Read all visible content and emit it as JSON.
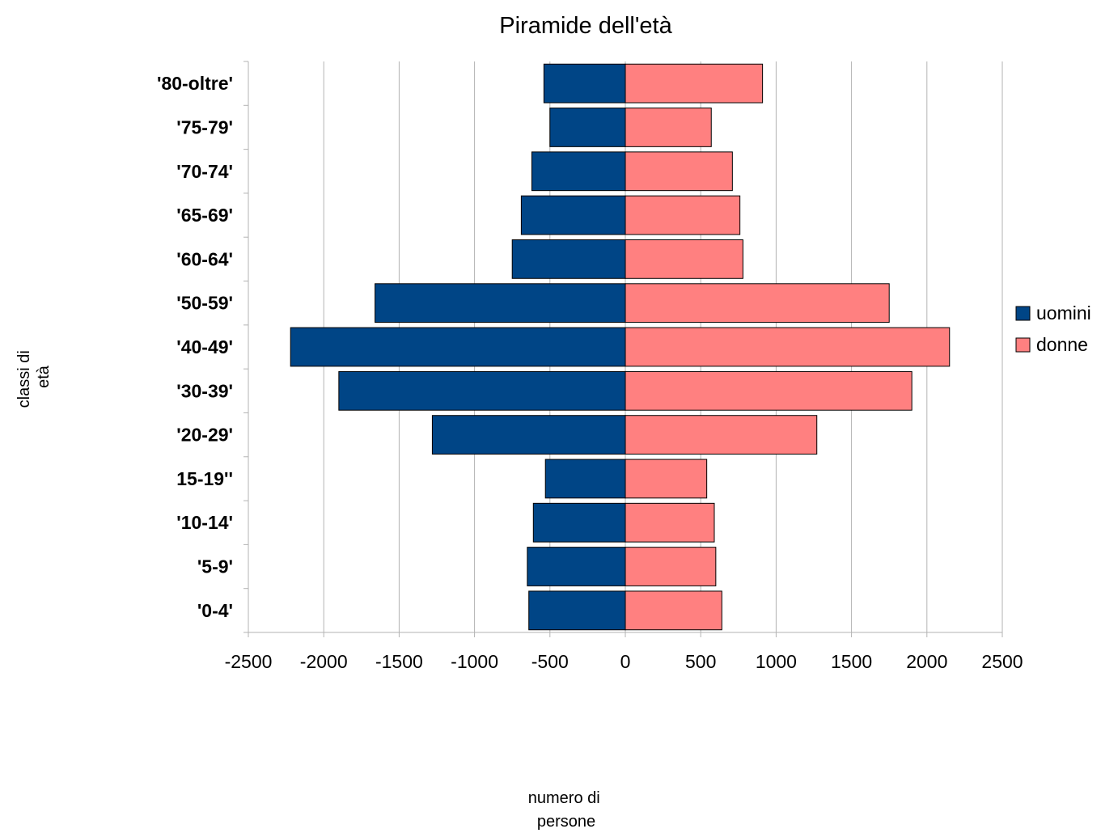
{
  "chart_data": {
    "type": "bar",
    "orientation": "horizontal",
    "title": "Piramide dell'età",
    "xlabel_lines": [
      "numero di",
      "persone"
    ],
    "ylabel_lines": [
      "classi di",
      "età"
    ],
    "categories": [
      "'0-4'",
      "'5-9'",
      "'10-14'",
      "15-19''",
      "'20-29'",
      "'30-39'",
      "'40-49'",
      "'50-59'",
      "'60-64'",
      "'65-69'",
      "'70-74'",
      "'75-79'",
      "'80-oltre'"
    ],
    "series": [
      {
        "name": "uomini",
        "color": "#004586",
        "values": [
          -640,
          -650,
          -610,
          -530,
          -1280,
          -1900,
          -2220,
          -1660,
          -750,
          -690,
          -620,
          -500,
          -540
        ]
      },
      {
        "name": "donne",
        "color": "#ff8080",
        "values": [
          640,
          600,
          590,
          540,
          1270,
          1900,
          2150,
          1750,
          780,
          760,
          710,
          570,
          910
        ]
      }
    ],
    "xlim": [
      -2500,
      2500
    ],
    "xticks": [
      -2500,
      -2000,
      -1500,
      -1000,
      -500,
      0,
      500,
      1000,
      1500,
      2000,
      2500
    ],
    "grid": true,
    "legend_position": "right"
  }
}
